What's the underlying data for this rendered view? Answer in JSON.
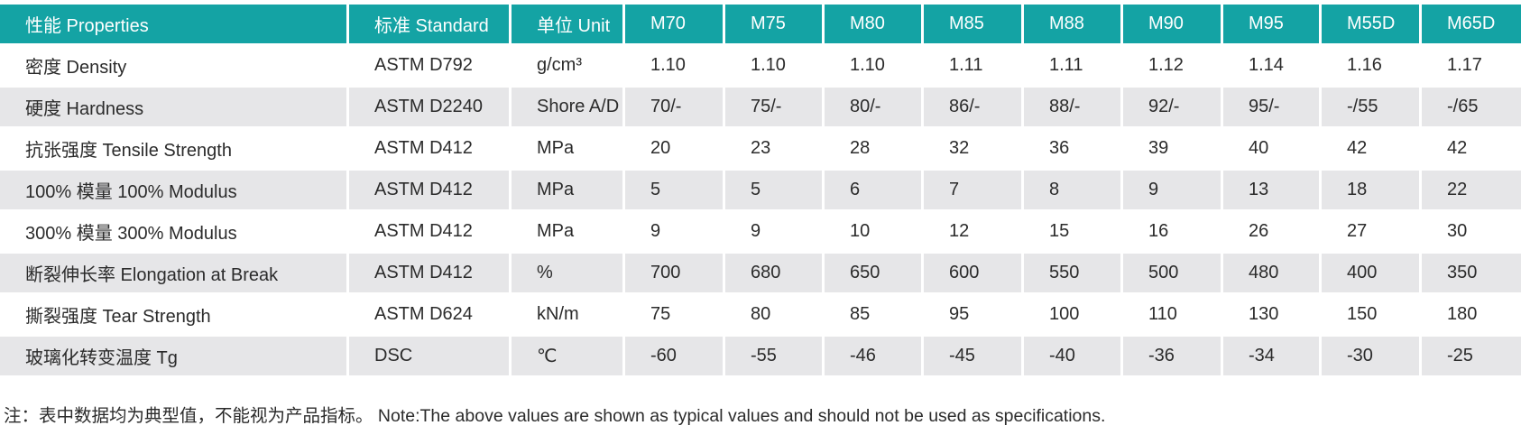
{
  "table": {
    "header": [
      "性能 Properties",
      "标准 Standard",
      "单位 Unit",
      "M70",
      "M75",
      "M80",
      "M85",
      "M88",
      "M90",
      "M95",
      "M55D",
      "M65D"
    ],
    "rows": [
      [
        "密度 Density",
        "ASTM D792",
        "g/cm³",
        "1.10",
        "1.10",
        "1.10",
        "1.11",
        "1.11",
        "1.12",
        "1.14",
        "1.16",
        "1.17"
      ],
      [
        "硬度 Hardness",
        "ASTM D2240",
        "Shore A/D",
        "70/-",
        "75/-",
        "80/-",
        "86/-",
        "88/-",
        "92/-",
        "95/-",
        "-/55",
        "-/65"
      ],
      [
        "抗张强度 Tensile Strength",
        "ASTM D412",
        "MPa",
        "20",
        "23",
        "28",
        "32",
        "36",
        "39",
        "40",
        "42",
        "42"
      ],
      [
        "100% 模量 100% Modulus",
        "ASTM D412",
        "MPa",
        "5",
        "5",
        "6",
        "7",
        "8",
        "9",
        "13",
        "18",
        "22"
      ],
      [
        "300% 模量 300% Modulus",
        "ASTM D412",
        "MPa",
        "9",
        "9",
        "10",
        "12",
        "15",
        "16",
        "26",
        "27",
        "30"
      ],
      [
        "断裂伸长率 Elongation at Break",
        "ASTM D412",
        "%",
        "700",
        "680",
        "650",
        "600",
        "550",
        "500",
        "480",
        "400",
        "350"
      ],
      [
        "撕裂强度 Tear Strength",
        "ASTM D624",
        "kN/m",
        "75",
        "80",
        "85",
        "95",
        "100",
        "110",
        "130",
        "150",
        "180"
      ],
      [
        "玻璃化转变温度 Tg",
        "DSC",
        "℃",
        "-60",
        "-55",
        "-46",
        "-45",
        "-40",
        "-36",
        "-34",
        "-30",
        "-25"
      ]
    ]
  },
  "note": "注：表中数据均为典型值，不能视为产品指标。 Note:The above values are shown as typical values and should not be used as specifications."
}
